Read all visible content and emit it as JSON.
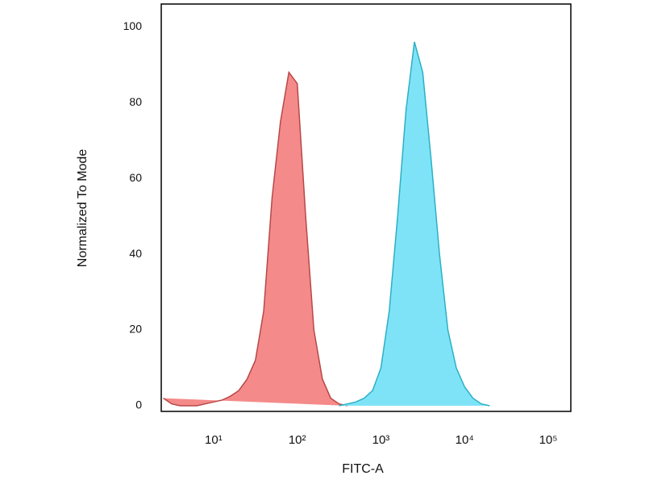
{
  "chart_data": {
    "type": "area",
    "xlabel": "FITC-A",
    "ylabel": "Normalized To Mode",
    "xscale": "log",
    "xlim": [
      2.37,
      186000
    ],
    "ylim": [
      0,
      106
    ],
    "xticks": [
      {
        "value": 10,
        "label": "10¹"
      },
      {
        "value": 100,
        "label": "10²"
      },
      {
        "value": 1000,
        "label": "10³"
      },
      {
        "value": 10000,
        "label": "10⁴"
      },
      {
        "value": 100000,
        "label": "10⁵"
      }
    ],
    "yticks": [
      0,
      20,
      40,
      60,
      80,
      100
    ],
    "x": [
      2.51,
      3.16,
      3.98,
      5.01,
      6.31,
      7.94,
      10,
      12.6,
      15.8,
      20,
      25.1,
      31.6,
      39.8,
      50.1,
      63.1,
      79.4,
      100,
      126,
      158,
      200,
      251,
      316,
      398,
      501,
      631,
      794,
      1000,
      1259,
      1585,
      1995,
      2512,
      3162,
      3981,
      5012,
      6310,
      7943,
      10000,
      12589,
      15849,
      19953,
      25119,
      31623,
      39811,
      50119,
      63096,
      79433,
      100000,
      125893,
      158489
    ],
    "series": [
      {
        "color": "#f58a8a",
        "edge": "#b84848",
        "values": [
          2,
          0.5,
          0,
          0,
          0,
          0.5,
          1,
          1.5,
          2.5,
          4,
          7,
          12,
          25,
          55,
          75,
          88,
          85,
          50,
          20,
          7,
          2,
          0.5,
          0,
          null,
          null,
          null,
          null,
          null,
          null,
          null,
          null,
          null,
          null,
          null,
          null,
          null,
          null,
          null,
          null,
          null,
          null,
          null,
          null,
          null,
          null,
          null,
          null,
          null,
          null
        ]
      },
      {
        "color": "#7fe3f7",
        "edge": "#2bb0c4",
        "values": [
          null,
          null,
          null,
          null,
          null,
          null,
          null,
          null,
          null,
          null,
          null,
          null,
          null,
          null,
          null,
          null,
          null,
          null,
          null,
          null,
          null,
          0,
          0.5,
          1,
          2,
          4,
          10,
          25,
          50,
          78,
          96,
          88,
          65,
          40,
          20,
          10,
          5,
          2,
          0.5,
          0,
          null,
          null,
          null,
          null,
          null,
          null,
          null,
          null,
          null
        ]
      }
    ]
  }
}
